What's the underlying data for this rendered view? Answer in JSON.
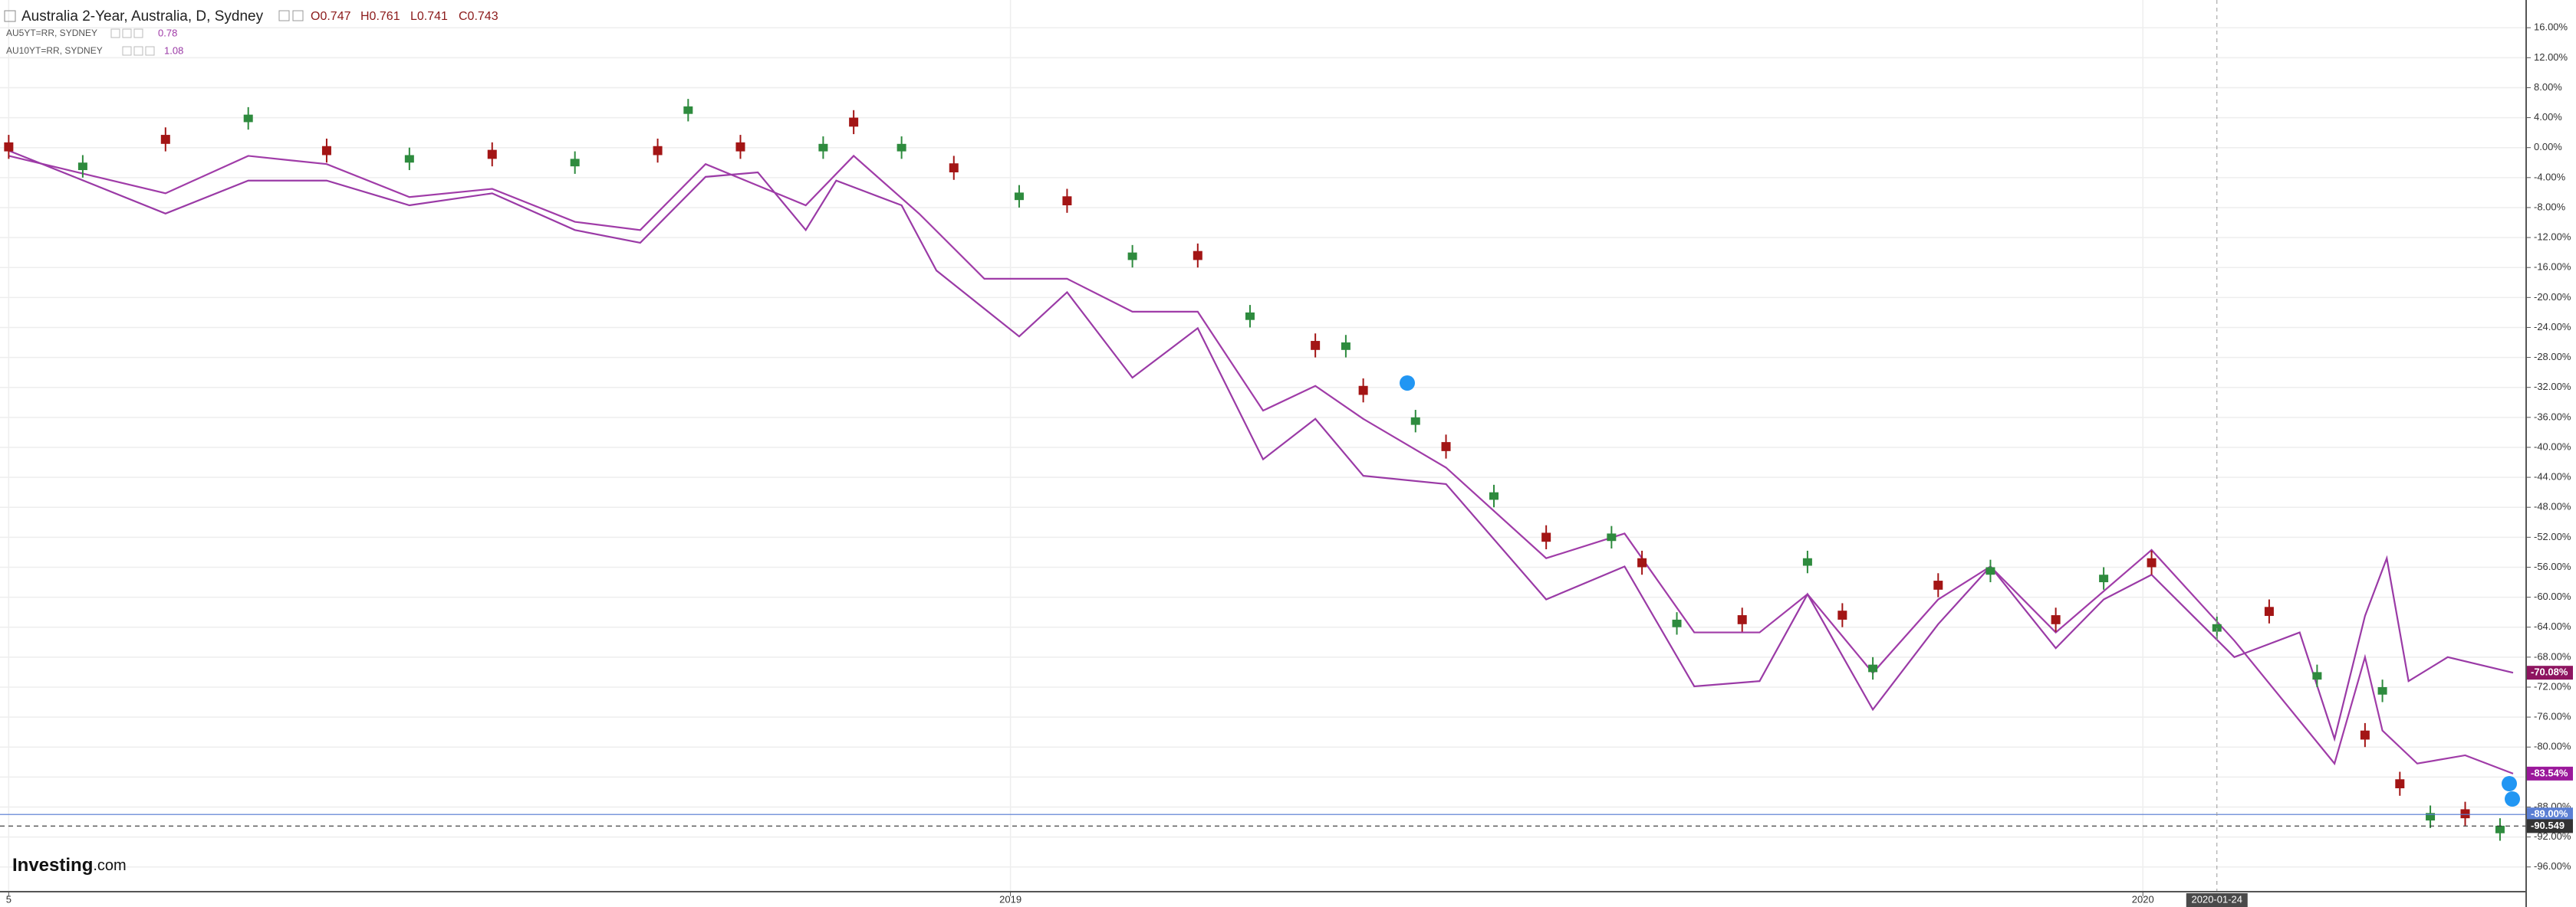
{
  "chart_data": {
    "type": "candlestick",
    "title": "Australia 2-Year, Australia, D, Sydney",
    "ohlc_labels": [
      "O0.747",
      "H0.761",
      "L0.741",
      "C0.743"
    ],
    "x": [
      2,
      19,
      38,
      57,
      75,
      94,
      113,
      132,
      151,
      158,
      170,
      189,
      196,
      207,
      219,
      234,
      245,
      260,
      275,
      287,
      302,
      309,
      313,
      325,
      332,
      343,
      355,
      370,
      377,
      385,
      400,
      415,
      423,
      430,
      445,
      457,
      472,
      483,
      494,
      509,
      521,
      532,
      543,
      547,
      551,
      558,
      566,
      574
    ],
    "open": [
      0.7,
      -3,
      1.7,
      3.4,
      0.2,
      -2,
      -0.3,
      -2.5,
      0.2,
      4.5,
      0.7,
      -0.5,
      4,
      -0.5,
      -2.1,
      -7,
      -6.5,
      -15,
      -13.8,
      -23,
      -25.8,
      -27,
      -31.8,
      -37,
      -39.3,
      -47,
      -51.4,
      -52.5,
      -54.8,
      -64,
      -62.4,
      -55.8,
      -61.8,
      -70,
      -57.8,
      -57,
      -62.4,
      -58,
      -54.8,
      -64.6,
      -61.3,
      -71,
      -77.8,
      -73,
      -84.3,
      -89.8,
      -88.3,
      -91.5
    ],
    "high": [
      1.7,
      -1,
      2.7,
      5.4,
      1.2,
      0,
      0.7,
      -0.5,
      1.2,
      6.5,
      1.7,
      1.5,
      5,
      1.5,
      -1.1,
      -5,
      -5.5,
      -13,
      -12.8,
      -21,
      -24.8,
      -25,
      -30.8,
      -35,
      -38.3,
      -45,
      -50.4,
      -50.5,
      -53.8,
      -62,
      -61.4,
      -53.8,
      -60.8,
      -68,
      -56.8,
      -55,
      -61.4,
      -56,
      -53.8,
      -62.6,
      -60.3,
      -69,
      -76.8,
      -71,
      -83.3,
      -87.8,
      -87.3,
      -89.5
    ],
    "low": [
      -1.5,
      -4,
      -0.5,
      2.4,
      -2,
      -3,
      -2.5,
      -3.5,
      -2,
      3.5,
      -1.5,
      -1.5,
      1.8,
      -1.5,
      -4.3,
      -8,
      -8.7,
      -16,
      -16,
      -24,
      -28,
      -28,
      -34,
      -38,
      -41.5,
      -48,
      -53.6,
      -53.5,
      -57,
      -65,
      -64.6,
      -56.8,
      -64,
      -71,
      -60,
      -58,
      -64.6,
      -59,
      -57,
      -65.6,
      -63.5,
      -72,
      -80,
      -74,
      -86.5,
      -90.8,
      -90.5,
      -92.5
    ],
    "close": [
      -0.5,
      -2,
      0.5,
      4.4,
      -1,
      -1,
      -1.5,
      -1.5,
      -1,
      5.5,
      -0.5,
      0.5,
      2.8,
      0.5,
      -3.3,
      -6,
      -7.7,
      -14,
      -15,
      -22,
      -27,
      -26,
      -33,
      -36,
      -40.5,
      -46,
      -52.6,
      -51.5,
      -56,
      -63,
      -63.6,
      -54.8,
      -63,
      -69,
      -59,
      -56,
      -63.6,
      -57,
      -56,
      -63.6,
      -62.5,
      -70,
      -79,
      -72,
      -85.5,
      -88.8,
      -89.5,
      -90.5
    ],
    "up_color": "#2e8b3e",
    "down_color": "#a31515",
    "series": [
      {
        "name": "AU5YT=RR, SYDNEY",
        "legend_value": "0.78",
        "color": "#a03ca8",
        "x": [
          2,
          38,
          57,
          75,
          94,
          113,
          132,
          147,
          162,
          185,
          196,
          211,
          226,
          245,
          260,
          275,
          290,
          302,
          313,
          332,
          355,
          373,
          389,
          404,
          415,
          430,
          445,
          457,
          472,
          494,
          513,
          536,
          543,
          547,
          555,
          566,
          577
        ],
        "values": [
          -1.1,
          -6.1,
          -1.1,
          -2.2,
          -6.6,
          -5.5,
          -9.9,
          -11,
          -2.2,
          -7.7,
          -1.1,
          -8.8,
          -17.5,
          -17.5,
          -21.9,
          -21.9,
          -35.1,
          -31.8,
          -36.2,
          -42.7,
          -54.8,
          -51.5,
          -64.7,
          -64.7,
          -59.6,
          -70.1,
          -60.3,
          -55.9,
          -64.7,
          -53.7,
          -65.8,
          -82.2,
          -68,
          -77.8,
          -82.2,
          -81.1,
          -83.54
        ]
      },
      {
        "name": "AU10YT=RR, SYDNEY",
        "legend_value": "1.08",
        "color": "#9a3aa6",
        "x": [
          2,
          38,
          57,
          75,
          94,
          113,
          132,
          147,
          162,
          174,
          185,
          192,
          207,
          215,
          234,
          245,
          260,
          275,
          290,
          302,
          313,
          332,
          355,
          373,
          389,
          404,
          415,
          430,
          445,
          457,
          472,
          483,
          494,
          513,
          528,
          536,
          543,
          548,
          553,
          562,
          577
        ],
        "values": [
          -0.4,
          -8.8,
          -4.4,
          -4.4,
          -7.7,
          -6.1,
          -11,
          -12.7,
          -3.9,
          -3.3,
          -11,
          -4.4,
          -7.7,
          -16.4,
          -25.2,
          -19.3,
          -30.7,
          -24.1,
          -41.6,
          -36.2,
          -43.8,
          -44.9,
          -60.3,
          -55.9,
          -71.9,
          -71.2,
          -59.6,
          -75,
          -63.6,
          -55.9,
          -66.8,
          -60.3,
          -57,
          -68,
          -64.7,
          -78.9,
          -62.5,
          -54.8,
          -71.2,
          -68,
          -70.08
        ]
      }
    ],
    "xlim": [
      0,
      580
    ],
    "xticks": [
      {
        "value": 2,
        "label": "5"
      },
      {
        "value": 232,
        "label": "2019"
      },
      {
        "value": 492,
        "label": "2020"
      }
    ],
    "ylim": [
      -99.3,
      19.7
    ],
    "yticks": [
      {
        "value": 16,
        "label": "16.00%"
      },
      {
        "value": 12,
        "label": "12.00%"
      },
      {
        "value": 8,
        "label": "8.00%"
      },
      {
        "value": 4,
        "label": "4.00%"
      },
      {
        "value": 0,
        "label": "0.00%"
      },
      {
        "value": -4,
        "label": "-4.00%"
      },
      {
        "value": -8,
        "label": "-8.00%"
      },
      {
        "value": -12,
        "label": "-12.00%"
      },
      {
        "value": -16,
        "label": "-16.00%"
      },
      {
        "value": -20,
        "label": "-20.00%"
      },
      {
        "value": -24,
        "label": "-24.00%"
      },
      {
        "value": -28,
        "label": "-28.00%"
      },
      {
        "value": -32,
        "label": "-32.00%"
      },
      {
        "value": -36,
        "label": "-36.00%"
      },
      {
        "value": -40,
        "label": "-40.00%"
      },
      {
        "value": -44,
        "label": "-44.00%"
      },
      {
        "value": -48,
        "label": "-48.00%"
      },
      {
        "value": -52,
        "label": "-52.00%"
      },
      {
        "value": -56,
        "label": "-56.00%"
      },
      {
        "value": -60,
        "label": "-60.00%"
      },
      {
        "value": -64,
        "label": "-64.00%"
      },
      {
        "value": -68,
        "label": "-68.00%"
      },
      {
        "value": -72,
        "label": "-72.00%"
      },
      {
        "value": -76,
        "label": "-76.00%"
      },
      {
        "value": -80,
        "label": "-80.00%"
      },
      {
        "value": -84,
        "label": "-84.00%"
      },
      {
        "value": -88,
        "label": "-88.00%"
      },
      {
        "value": -92,
        "label": "-92.00%"
      },
      {
        "value": -96,
        "label": "-96.00%"
      }
    ],
    "grid": true,
    "price_labels": [
      {
        "value": -70.08,
        "label": "-70.08%",
        "color": "#8e1460"
      },
      {
        "value": -83.54,
        "label": "-83.54%",
        "color": "#9b189b"
      },
      {
        "value": -89,
        "label": "-89.00%",
        "color": "#5b7fd4",
        "line_style": "solid"
      },
      {
        "value": -90.549,
        "label": "-90.549",
        "color": "#333333",
        "line_style": "dashed"
      }
    ],
    "crosshair": {
      "value": 509,
      "label": "2020-01-24"
    },
    "logo": "Investing",
    "logo_suffix": ".com"
  }
}
